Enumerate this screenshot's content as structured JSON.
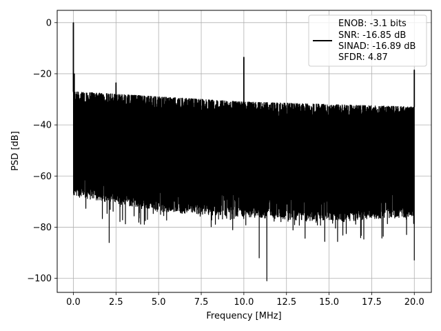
{
  "chart_data": {
    "type": "line",
    "xlabel": "Frequency [MHz]",
    "ylabel": "PSD [dB]",
    "xlim": [
      -0.95,
      21.0
    ],
    "ylim": [
      -105.5,
      4.8
    ],
    "grid": true,
    "legend_position": "top-right",
    "x_ticks": [
      0.0,
      2.5,
      5.0,
      7.5,
      10.0,
      12.5,
      15.0,
      17.5,
      20.0
    ],
    "x_tick_labels": [
      "0.0",
      "2.5",
      "5.0",
      "7.5",
      "10.0",
      "12.5",
      "15.0",
      "17.5",
      "20.0"
    ],
    "y_ticks": [
      0,
      -20,
      -40,
      -60,
      -80,
      -100
    ],
    "y_tick_labels": [
      "0",
      "−20",
      "−40",
      "−60",
      "−80",
      "−100"
    ],
    "legend_lines": [
      "ENOB: -3.1 bits",
      "SNR: -16.85 dB",
      "SINAD: -16.89 dB",
      "SFDR: 4.87"
    ],
    "series": [
      {
        "color": "#000000",
        "x_range": [
          0.0,
          20.0
        ],
        "noise_envelope_top": [
          [
            0.1,
            -27
          ],
          [
            5.0,
            -29
          ],
          [
            10.0,
            -31
          ],
          [
            15.0,
            -32
          ],
          [
            20.0,
            -33
          ]
        ],
        "noise_envelope_bottom": [
          [
            0.1,
            -64
          ],
          [
            5.0,
            -70
          ],
          [
            10.0,
            -72
          ],
          [
            15.0,
            -74
          ],
          [
            20.0,
            -72
          ]
        ],
        "spurs": [
          {
            "x": 0.0,
            "y": 0
          },
          {
            "x": 0.05,
            "y": -20
          },
          {
            "x": 2.5,
            "y": -23.5
          },
          {
            "x": 10.0,
            "y": -13.5
          },
          {
            "x": 20.0,
            "y": -18.5
          }
        ],
        "deep_nulls": [
          {
            "x": 2.1,
            "y": -86
          },
          {
            "x": 11.35,
            "y": -101
          },
          {
            "x": 10.9,
            "y": -92
          },
          {
            "x": 20.0,
            "y": -93
          }
        ]
      }
    ]
  }
}
